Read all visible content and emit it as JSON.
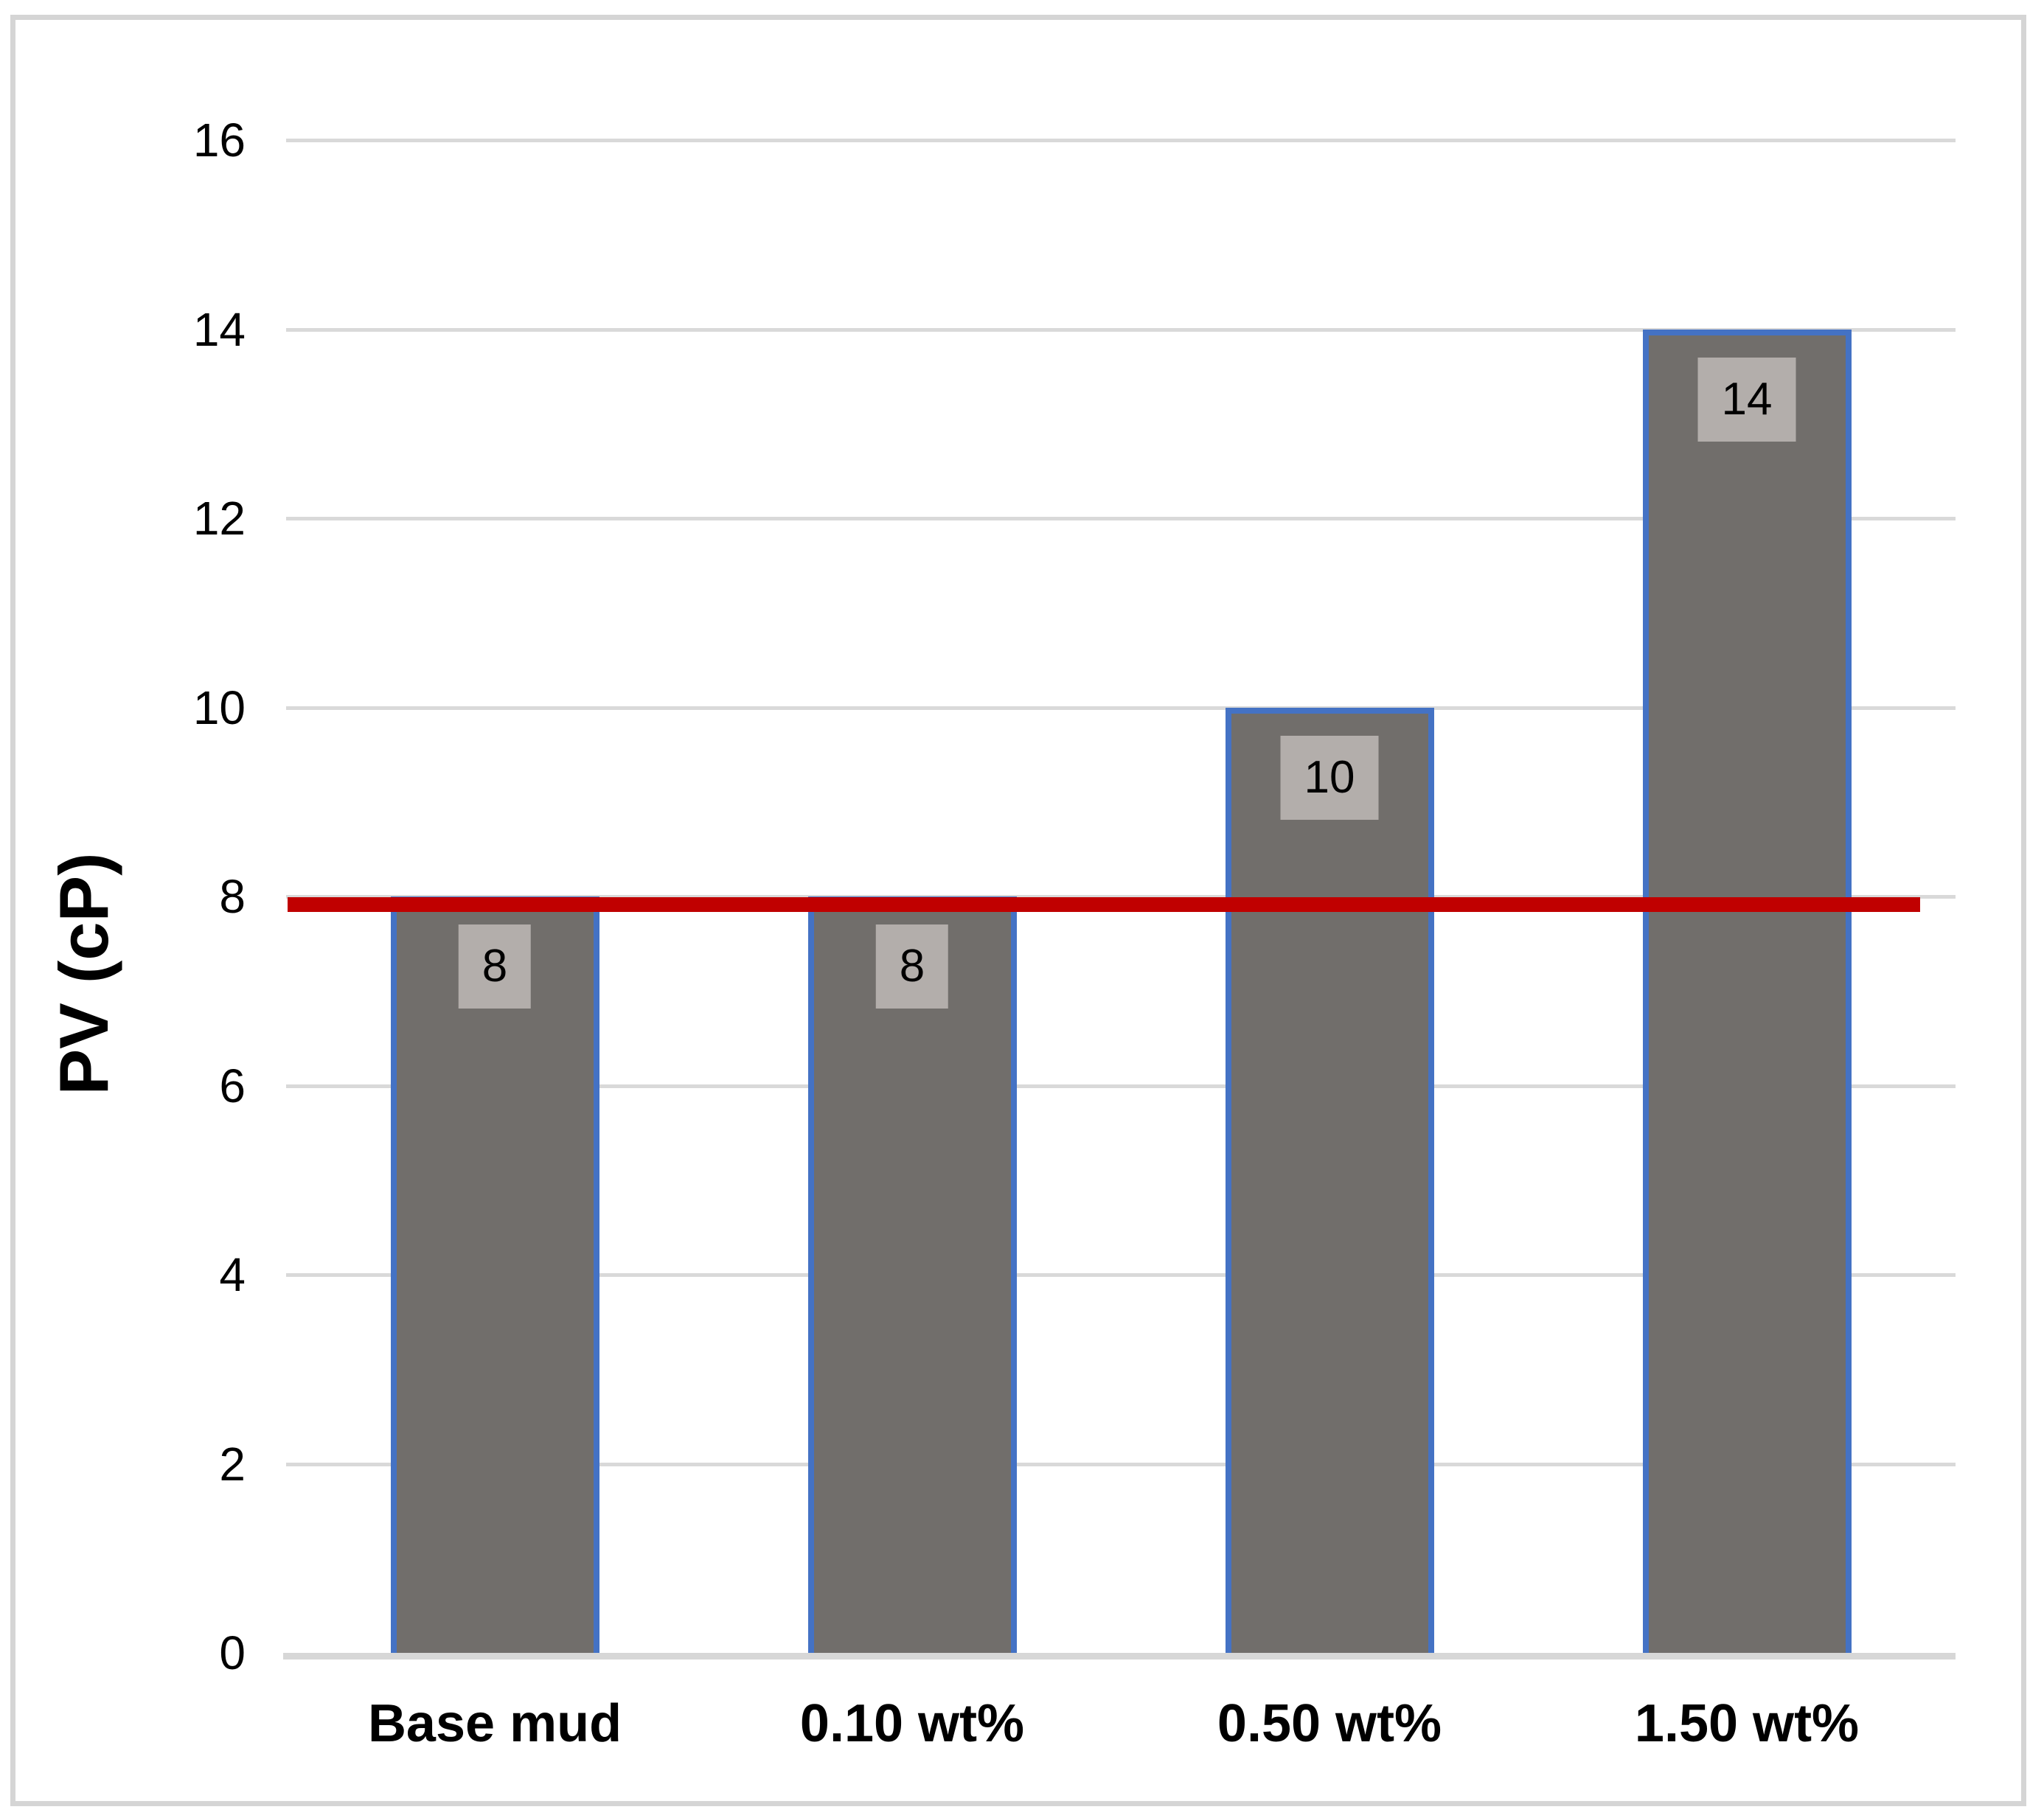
{
  "figure": {
    "background": "#ffffff",
    "border_color": "#d5d5d5"
  },
  "chart_data": {
    "type": "bar",
    "title": "",
    "categories": [
      "Base mud",
      "0.10 wt%",
      "0.50 wt%",
      "1.50 wt%"
    ],
    "values": [
      8,
      8,
      10,
      14
    ],
    "data_labels": [
      "8",
      "8",
      "10",
      "14"
    ],
    "xlabel": "",
    "ylabel": "PV (cP)",
    "ylim": [
      0,
      16
    ],
    "yticks": [
      0,
      2,
      4,
      6,
      8,
      10,
      12,
      14,
      16
    ],
    "grid": true,
    "legend_position": "none",
    "reference_line": {
      "value": 8,
      "color": "#c00000"
    },
    "colors": {
      "bar_fill": "#716e6b",
      "bar_border": "#4472c4",
      "data_label_box": "#b3aeab",
      "gridline": "#d9d9d9",
      "axis_line": "#d7d7d7",
      "text": "#000000"
    }
  }
}
